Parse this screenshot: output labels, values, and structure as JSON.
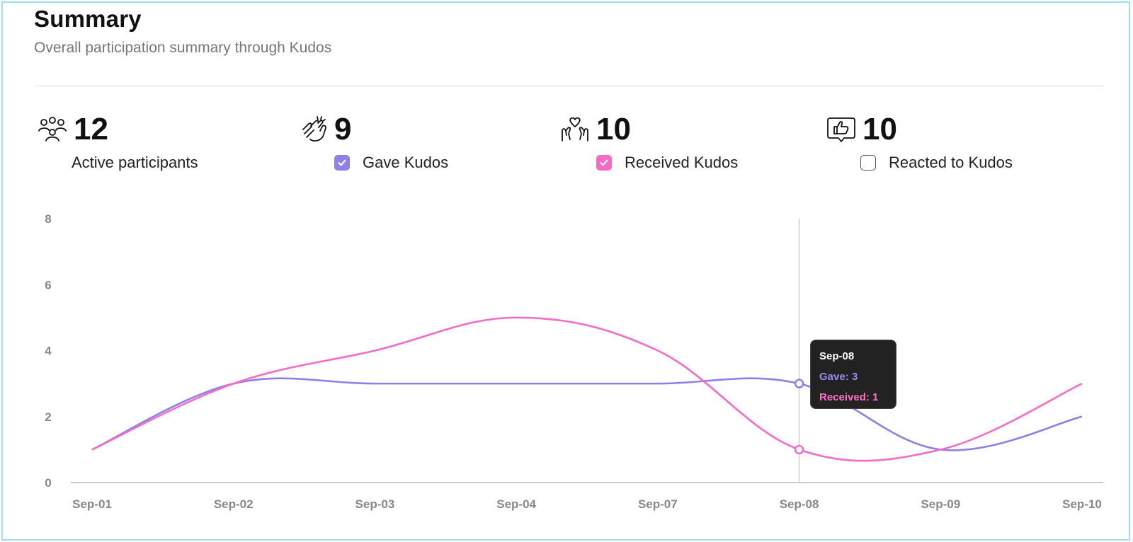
{
  "header": {
    "title": "Summary",
    "subtitle": "Overall participation summary through Kudos"
  },
  "stats": [
    {
      "icon": "people-icon",
      "value": "12",
      "label": "Active participants",
      "has_checkbox": false
    },
    {
      "icon": "clapping-hands-icon",
      "value": "9",
      "label": "Gave Kudos",
      "has_checkbox": true,
      "checked": true,
      "color": "#8f80e8"
    },
    {
      "icon": "hands-heart-icon",
      "value": "10",
      "label": "Received Kudos",
      "has_checkbox": true,
      "checked": true,
      "color": "#f56cc6"
    },
    {
      "icon": "thumbs-up-bubble-icon",
      "value": "10",
      "label": "Reacted to Kudos",
      "has_checkbox": true,
      "checked": false
    }
  ],
  "chart_data": {
    "type": "line",
    "categories": [
      "Sep-01",
      "Sep-02",
      "Sep-03",
      "Sep-04",
      "Sep-07",
      "Sep-08",
      "Sep-09",
      "Sep-10"
    ],
    "y_ticks": [
      "0",
      "2",
      "4",
      "6",
      "8"
    ],
    "ylim": [
      0,
      8
    ],
    "series": [
      {
        "name": "Gave",
        "color": "#8f80e8",
        "values": [
          1,
          3,
          3,
          3,
          3,
          3,
          1,
          2
        ]
      },
      {
        "name": "Received",
        "color": "#f56cc6",
        "values": [
          1,
          3,
          4,
          5,
          4,
          1,
          1,
          3
        ]
      }
    ],
    "hover_index": 5
  },
  "tooltip": {
    "date": "Sep-08",
    "gave": "Gave: 3",
    "received": "Received: 1"
  }
}
